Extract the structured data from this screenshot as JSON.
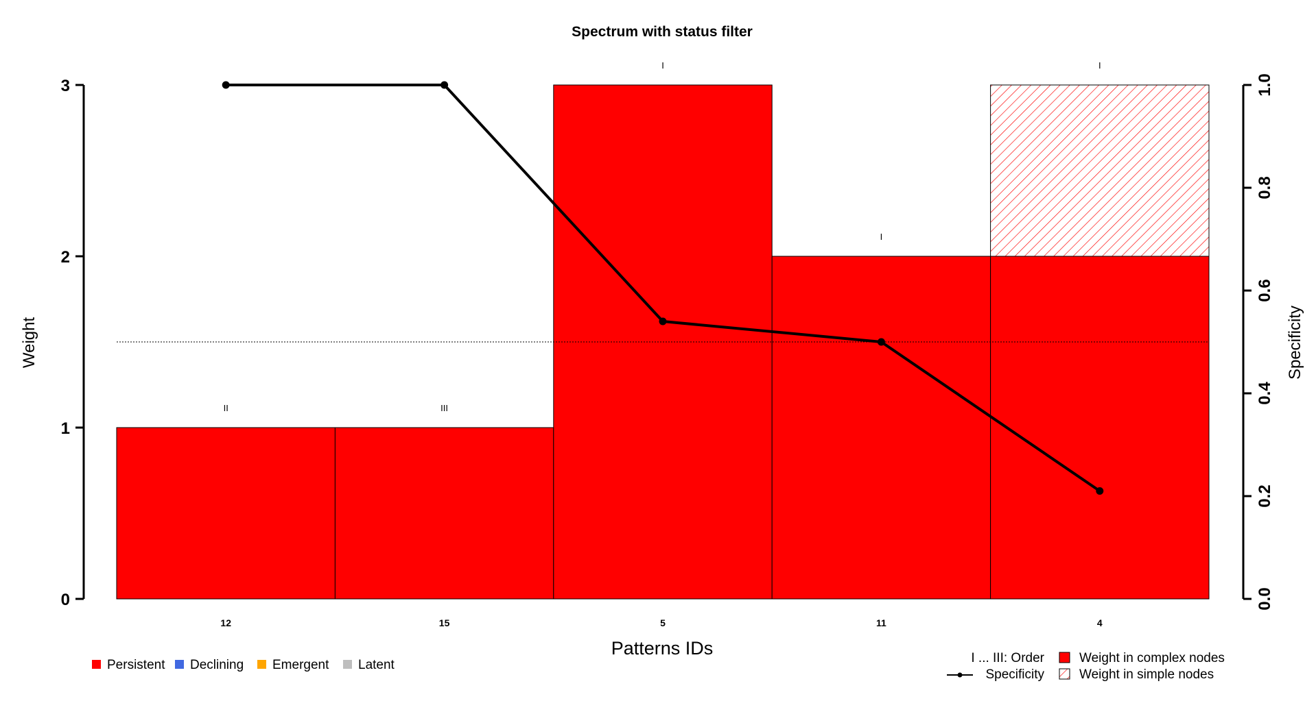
{
  "chart_data": {
    "type": "bar",
    "title": "Spectrum with status filter",
    "xlabel": "Patterns IDs",
    "ylabel": "Weight",
    "y2label": "Specificity",
    "ylim": [
      0,
      3
    ],
    "y2lim": [
      0,
      1
    ],
    "yticks": [
      "0",
      "1",
      "2",
      "3"
    ],
    "y2ticks": [
      "0.0",
      "0.2",
      "0.4",
      "0.6",
      "0.8",
      "1.0"
    ],
    "reference_line": 0.5,
    "categories": [
      "12",
      "15",
      "5",
      "11",
      "4"
    ],
    "order_labels": [
      "II",
      "III",
      "I",
      "I",
      "I"
    ],
    "series": [
      {
        "name": "Weight in complex nodes",
        "values": [
          1,
          1,
          3,
          2,
          2
        ],
        "color": "#ff0000"
      },
      {
        "name": "Weight in simple nodes",
        "values": [
          0,
          0,
          0,
          0,
          1
        ],
        "color": "#ff0000",
        "pattern": "hatched"
      },
      {
        "name": "Specificity",
        "values": [
          1.0,
          1.0,
          0.54,
          0.5,
          0.21
        ],
        "axis": "right",
        "color": "#000000"
      }
    ],
    "status_legend": [
      {
        "label": "Persistent",
        "color": "#ff0000"
      },
      {
        "label": "Declining",
        "color": "#4169e1"
      },
      {
        "label": "Emergent",
        "color": "#ffa500"
      },
      {
        "label": "Latent",
        "color": "#bebebe"
      }
    ],
    "info_legend": {
      "order": "I ... III:  Order",
      "specificity": "Specificity",
      "complex": "Weight in complex nodes",
      "simple": "Weight in simple nodes"
    }
  }
}
